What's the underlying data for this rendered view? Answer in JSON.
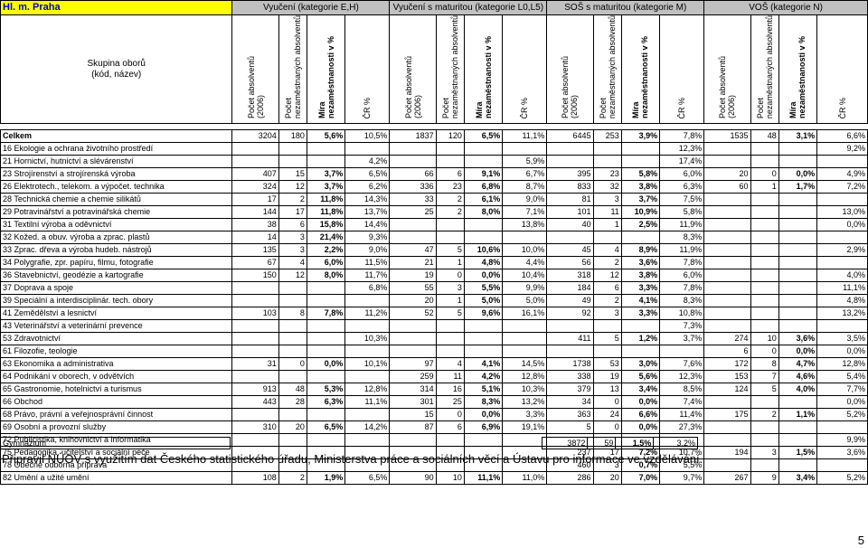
{
  "region": "Hl. m. Praha",
  "categories": [
    "Vyučení (kategorie E,H)",
    "Vyučení s maturitou (kategorie L0,L5)",
    "SOŠ s maturitou (kategorie M)",
    "VOŠ (kategorie N)"
  ],
  "group_header": [
    "Skupina oborů",
    "(kód, název)"
  ],
  "col_headers": [
    {
      "l1": "Počet absolventů",
      "l2": "(2006)",
      "bold": false
    },
    {
      "l1": "Počet",
      "l2": "nezaměstnaných absolventů",
      "bold": false
    },
    {
      "l1": "Míra",
      "l2": "nezaměstnanosti v %",
      "bold": true
    },
    {
      "l1": "ČR %",
      "l2": "",
      "bold": false
    }
  ],
  "total_row": {
    "label": "Celkem",
    "cells": [
      "3204",
      "180",
      "5,6%",
      "10,5%",
      "1837",
      "120",
      "6,5%",
      "11,1%",
      "6445",
      "253",
      "3,9%",
      "7,8%",
      "1535",
      "48",
      "3,1%",
      "6,6%"
    ]
  },
  "rows": [
    {
      "name": "16 Ekologie a ochrana životního prostředí",
      "cells": [
        "",
        "",
        "",
        "",
        "",
        "",
        "",
        "",
        "",
        "",
        "",
        "12,3%",
        "",
        "",
        "",
        "9,2%"
      ]
    },
    {
      "name": "21 Hornictví, hutnictví a slévárenství",
      "cells": [
        "",
        "",
        "",
        "4,2%",
        "",
        "",
        "",
        "5,9%",
        "",
        "",
        "",
        "17,4%",
        "",
        "",
        "",
        ""
      ]
    },
    {
      "name": "23 Strojírenství a strojírenská výroba",
      "cells": [
        "407",
        "15",
        "3,7%",
        "6,5%",
        "66",
        "6",
        "9,1%",
        "6,7%",
        "395",
        "23",
        "5,8%",
        "6,0%",
        "20",
        "0",
        "0,0%",
        "4,9%"
      ]
    },
    {
      "name": "26 Elektrotech., telekom. a výpočet. technika",
      "cells": [
        "324",
        "12",
        "3,7%",
        "6,2%",
        "336",
        "23",
        "6,8%",
        "8,7%",
        "833",
        "32",
        "3,8%",
        "6,3%",
        "60",
        "1",
        "1,7%",
        "7,2%"
      ]
    },
    {
      "name": "28 Technická chemie a chemie silikátů",
      "cells": [
        "17",
        "2",
        "11,8%",
        "14,3%",
        "33",
        "2",
        "6,1%",
        "9,0%",
        "81",
        "3",
        "3,7%",
        "7,5%",
        "",
        "",
        "",
        ""
      ]
    },
    {
      "name": "29 Potravinářství a potravinářská chemie",
      "cells": [
        "144",
        "17",
        "11,8%",
        "13,7%",
        "25",
        "2",
        "8,0%",
        "7,1%",
        "101",
        "11",
        "10,9%",
        "5,8%",
        "",
        "",
        "",
        "13,0%"
      ]
    },
    {
      "name": "31 Textilní výroba a oděvnictví",
      "cells": [
        "38",
        "6",
        "15,8%",
        "14,4%",
        "",
        "",
        "",
        "13,8%",
        "40",
        "1",
        "2,5%",
        "11,9%",
        "",
        "",
        "",
        "0,0%"
      ]
    },
    {
      "name": "32 Kožed. a obuv. výroba a zprac. plastů",
      "cells": [
        "14",
        "3",
        "21,4%",
        "9,3%",
        "",
        "",
        "",
        "",
        "",
        "",
        "",
        "8,3%",
        "",
        "",
        "",
        ""
      ]
    },
    {
      "name": "33 Zprac. dřeva a výroba hudeb. nástrojů",
      "cells": [
        "135",
        "3",
        "2,2%",
        "9,0%",
        "47",
        "5",
        "10,6%",
        "10,0%",
        "45",
        "4",
        "8,9%",
        "11,9%",
        "",
        "",
        "",
        "2,9%"
      ]
    },
    {
      "name": "34 Polygrafie, zpr. papíru, filmu, fotografie",
      "cells": [
        "67",
        "4",
        "6,0%",
        "11,5%",
        "21",
        "1",
        "4,8%",
        "4,4%",
        "56",
        "2",
        "3,6%",
        "7,8%",
        "",
        "",
        "",
        ""
      ]
    },
    {
      "name": "36 Stavebnictví, geodézie a kartografie",
      "cells": [
        "150",
        "12",
        "8,0%",
        "11,7%",
        "19",
        "0",
        "0,0%",
        "10,4%",
        "318",
        "12",
        "3,8%",
        "6,0%",
        "",
        "",
        "",
        "4,0%"
      ]
    },
    {
      "name": "37 Doprava a spoje",
      "cells": [
        "",
        "",
        "",
        "6,8%",
        "55",
        "3",
        "5,5%",
        "9,9%",
        "184",
        "6",
        "3,3%",
        "7,8%",
        "",
        "",
        "",
        "11,1%"
      ]
    },
    {
      "name": "39 Speciální a interdisciplinár. tech. obory",
      "cells": [
        "",
        "",
        "",
        "",
        "20",
        "1",
        "5,0%",
        "5,0%",
        "49",
        "2",
        "4,1%",
        "8,3%",
        "",
        "",
        "",
        "4,8%"
      ]
    },
    {
      "name": "41 Zemědělství a lesnictví",
      "cells": [
        "103",
        "8",
        "7,8%",
        "11,2%",
        "52",
        "5",
        "9,6%",
        "16,1%",
        "92",
        "3",
        "3,3%",
        "10,8%",
        "",
        "",
        "",
        "13,2%"
      ]
    },
    {
      "name": "43 Veterinářství a veterinární prevence",
      "cells": [
        "",
        "",
        "",
        "",
        "",
        "",
        "",
        "",
        "",
        "",
        "",
        "7,3%",
        "",
        "",
        "",
        ""
      ]
    },
    {
      "name": "53 Zdravotnictví",
      "cells": [
        "",
        "",
        "",
        "10,3%",
        "",
        "",
        "",
        "",
        "411",
        "5",
        "1,2%",
        "3,7%",
        "274",
        "10",
        "3,6%",
        "3,5%"
      ]
    },
    {
      "name": "61 Filozofie, teologie",
      "cells": [
        "",
        "",
        "",
        "",
        "",
        "",
        "",
        "",
        "",
        "",
        "",
        "",
        "6",
        "0",
        "0,0%",
        "0,0%"
      ]
    },
    {
      "name": "63 Ekonomika a administrativa",
      "cells": [
        "31",
        "0",
        "0,0%",
        "10,1%",
        "97",
        "4",
        "4,1%",
        "14,5%",
        "1738",
        "53",
        "3,0%",
        "7,6%",
        "172",
        "8",
        "4,7%",
        "12,8%"
      ]
    },
    {
      "name": "64 Podnikání v oborech, v odvětvích",
      "cells": [
        "",
        "",
        "",
        "",
        "259",
        "11",
        "4,2%",
        "12,8%",
        "338",
        "19",
        "5,6%",
        "12,3%",
        "153",
        "7",
        "4,6%",
        "5,4%"
      ]
    },
    {
      "name": "65 Gastronomie, hotelnictví a turismus",
      "cells": [
        "913",
        "48",
        "5,3%",
        "12,8%",
        "314",
        "16",
        "5,1%",
        "10,3%",
        "379",
        "13",
        "3,4%",
        "8,5%",
        "124",
        "5",
        "4,0%",
        "7,7%"
      ]
    },
    {
      "name": "66 Obchod",
      "cells": [
        "443",
        "28",
        "6,3%",
        "11,1%",
        "301",
        "25",
        "8,3%",
        "13,2%",
        "34",
        "0",
        "0,0%",
        "7,4%",
        "",
        "",
        "",
        "0,0%"
      ]
    },
    {
      "name": "68 Právo, právní a veřejnosprávní činnost",
      "cells": [
        "",
        "",
        "",
        "",
        "15",
        "0",
        "0,0%",
        "3,3%",
        "363",
        "24",
        "6,6%",
        "11,4%",
        "175",
        "2",
        "1,1%",
        "5,2%"
      ]
    },
    {
      "name": "69 Osobní a provozní služby",
      "cells": [
        "310",
        "20",
        "6,5%",
        "14,2%",
        "87",
        "6",
        "6,9%",
        "19,1%",
        "5",
        "0",
        "0,0%",
        "27,3%",
        "",
        "",
        "",
        ""
      ]
    },
    {
      "name": "72 Publicistika, knihovnictví a informatika",
      "cells": [
        "",
        "",
        "",
        "",
        "",
        "",
        "",
        "",
        "",
        "",
        "",
        "",
        "",
        "",
        "",
        "9,9%"
      ]
    },
    {
      "name": "75 Pedagogika, učitelství a sociální péče",
      "cells": [
        "",
        "",
        "",
        "",
        "",
        "",
        "",
        "",
        "237",
        "17",
        "7,2%",
        "10,7%",
        "194",
        "3",
        "1,5%",
        "3,6%"
      ]
    },
    {
      "name": "78 Obecně odborná příprava",
      "cells": [
        "",
        "",
        "",
        "",
        "",
        "",
        "",
        "",
        "460",
        "3",
        "0,7%",
        "5,5%",
        "",
        "",
        "",
        ""
      ]
    },
    {
      "name": "82 Umění a užité umění",
      "cells": [
        "108",
        "2",
        "1,9%",
        "6,5%",
        "90",
        "10",
        "11,1%",
        "11,0%",
        "286",
        "20",
        "7,0%",
        "9,7%",
        "267",
        "9",
        "3,4%",
        "5,2%"
      ]
    }
  ],
  "row72_extra": [
    "9,9%",
    "90",
    "3",
    "3,3%",
    "2,5%"
  ],
  "gymnazium": {
    "name": "Gymnázium",
    "cells": [
      "3872",
      "59",
      "1,5%",
      "3,2%"
    ]
  },
  "footnote": "Připravil NÚOV s využitím dat Českého statistického úřadu, Ministerstva práce a sociálních věcí a Ústavu pro informace ve vzdělávání.",
  "page_number": "5"
}
